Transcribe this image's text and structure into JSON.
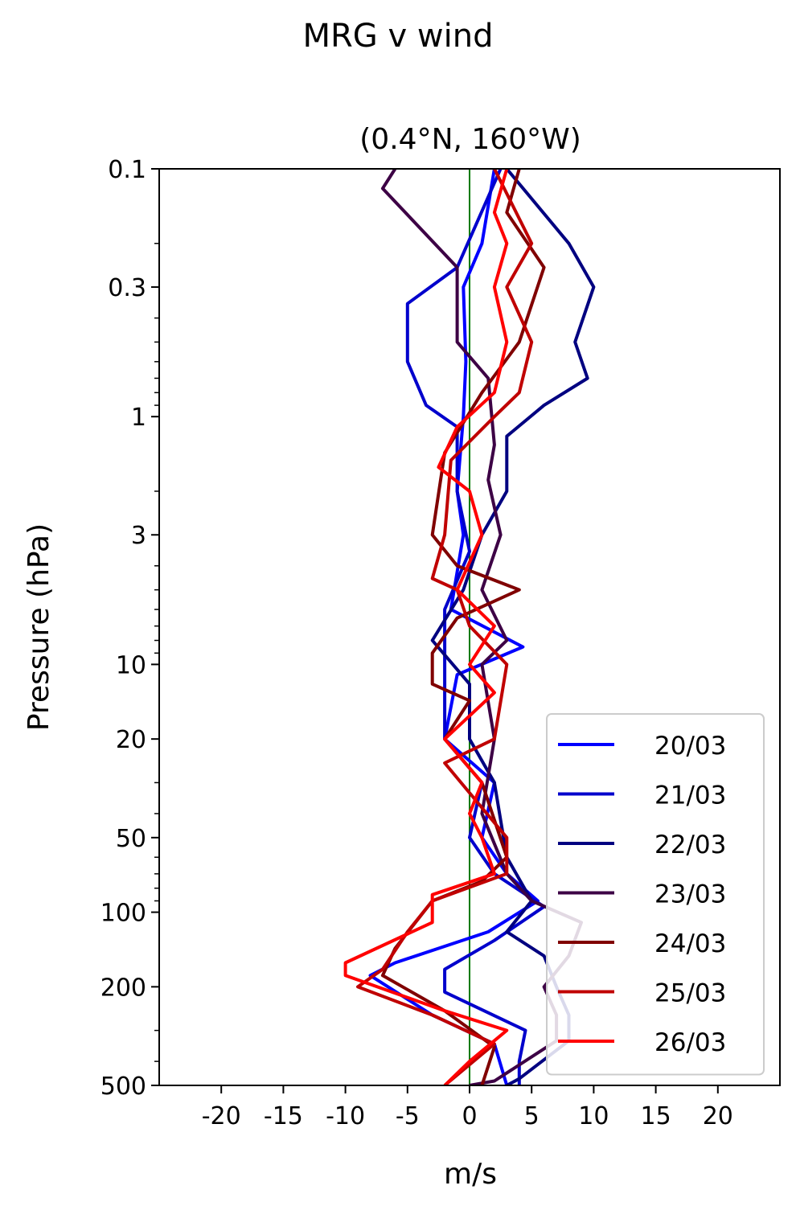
{
  "chart_data": {
    "type": "line",
    "title": "MRG v wind",
    "subtitle": "(0.4°N, 160°W)",
    "xlabel": "m/s",
    "ylabel": "Pressure (hPa)",
    "xlim": [
      -25,
      25
    ],
    "ylim": [
      500,
      0.1
    ],
    "yscale": "log",
    "x_ticks": [
      -20,
      -15,
      -10,
      -5,
      0,
      5,
      10,
      15,
      20
    ],
    "x_tick_labels": [
      "-20",
      "-15",
      "-10",
      "-5",
      "0",
      "5",
      "10",
      "15",
      "20"
    ],
    "y_ticks": [
      0.1,
      0.3,
      1,
      3,
      10,
      20,
      50,
      100,
      200,
      500
    ],
    "y_tick_labels": [
      "0.1",
      "0.3",
      "1",
      "3",
      "10",
      "20",
      "50",
      "100",
      "200",
      "500"
    ],
    "zero_line": {
      "x": 0,
      "color": "#007a00"
    },
    "legend_position": "lower-right",
    "series": [
      {
        "name": "20/03",
        "color": "#0000ff",
        "points": [
          [
            2,
            0.1
          ],
          [
            1,
            0.2
          ],
          [
            -0.5,
            0.3
          ],
          [
            -0.3,
            0.6
          ],
          [
            -0.5,
            1.0
          ],
          [
            -1,
            2.0
          ],
          [
            -0.5,
            3.0
          ],
          [
            -1.5,
            6.0
          ],
          [
            4.3,
            8.5
          ],
          [
            -1,
            11
          ],
          [
            -2,
            20
          ],
          [
            2,
            30
          ],
          [
            1,
            50
          ],
          [
            3,
            70
          ],
          [
            5.5,
            90
          ],
          [
            1.5,
            120
          ],
          [
            -6,
            160
          ],
          [
            -8,
            180
          ],
          [
            -3,
            260
          ],
          [
            2,
            340
          ],
          [
            3,
            500
          ]
        ]
      },
      {
        "name": "21/03",
        "color": "#0000cc",
        "points": [
          [
            2.5,
            0.1
          ],
          [
            -1,
            0.25
          ],
          [
            -5,
            0.35
          ],
          [
            -5,
            0.6
          ],
          [
            -3.5,
            0.9
          ],
          [
            -1,
            1.1
          ],
          [
            -1,
            2.0
          ],
          [
            0,
            3.5
          ],
          [
            -2,
            6.0
          ],
          [
            -2,
            10
          ],
          [
            -2,
            20
          ],
          [
            1,
            30
          ],
          [
            0,
            50
          ],
          [
            2,
            70
          ],
          [
            6,
            95
          ],
          [
            2,
            130
          ],
          [
            -2,
            170
          ],
          [
            -2,
            210
          ],
          [
            4.5,
            300
          ],
          [
            4,
            400
          ],
          [
            4,
            500
          ]
        ]
      },
      {
        "name": "22/03",
        "color": "#000080",
        "points": [
          [
            3,
            0.1
          ],
          [
            8,
            0.2
          ],
          [
            10,
            0.3
          ],
          [
            8.5,
            0.5
          ],
          [
            9.5,
            0.7
          ],
          [
            6,
            0.9
          ],
          [
            3,
            1.2
          ],
          [
            3,
            2.0
          ],
          [
            1,
            3.0
          ],
          [
            -0.5,
            5.0
          ],
          [
            -3,
            8.0
          ],
          [
            0,
            12
          ],
          [
            0,
            20
          ],
          [
            2,
            30
          ],
          [
            3,
            60
          ],
          [
            5,
            90
          ],
          [
            3,
            120
          ],
          [
            6,
            150
          ],
          [
            7,
            200
          ],
          [
            8,
            260
          ],
          [
            8,
            330
          ],
          [
            4,
            470
          ],
          [
            3,
            500
          ]
        ]
      },
      {
        "name": "23/03",
        "color": "#3d0045",
        "points": [
          [
            -6,
            0.1
          ],
          [
            -7,
            0.12
          ],
          [
            -1,
            0.25
          ],
          [
            -1,
            0.5
          ],
          [
            1.5,
            0.7
          ],
          [
            2,
            1.3
          ],
          [
            1.5,
            1.8
          ],
          [
            2.5,
            3.0
          ],
          [
            1,
            5.0
          ],
          [
            3,
            8.0
          ],
          [
            1,
            10
          ],
          [
            2,
            20
          ],
          [
            1,
            40
          ],
          [
            3,
            70
          ],
          [
            5,
            90
          ],
          [
            9,
            110
          ],
          [
            8,
            150
          ],
          [
            6,
            200
          ],
          [
            7,
            260
          ],
          [
            7,
            330
          ],
          [
            2,
            480
          ],
          [
            0,
            500
          ]
        ]
      },
      {
        "name": "24/03",
        "color": "#800000",
        "points": [
          [
            4,
            0.1
          ],
          [
            3,
            0.15
          ],
          [
            6,
            0.25
          ],
          [
            4,
            0.5
          ],
          [
            1,
            0.8
          ],
          [
            -2,
            1.4
          ],
          [
            -3,
            3.0
          ],
          [
            -1,
            4.0
          ],
          [
            4,
            5.0
          ],
          [
            -1,
            6.5
          ],
          [
            -3,
            9.0
          ],
          [
            -3,
            12
          ],
          [
            0,
            14
          ],
          [
            -2,
            20
          ],
          [
            1,
            30
          ],
          [
            3,
            60
          ],
          [
            1,
            75
          ],
          [
            -3,
            90
          ],
          [
            -6,
            140
          ],
          [
            -7,
            180
          ],
          [
            -2,
            250
          ],
          [
            2,
            350
          ],
          [
            1,
            500
          ]
        ]
      },
      {
        "name": "25/03",
        "color": "#c00000",
        "points": [
          [
            2,
            0.1
          ],
          [
            5,
            0.2
          ],
          [
            3,
            0.3
          ],
          [
            5,
            0.5
          ],
          [
            4,
            0.8
          ],
          [
            2,
            1.0
          ],
          [
            -1.5,
            1.5
          ],
          [
            -2,
            3.0
          ],
          [
            -3,
            4.5
          ],
          [
            -1,
            5.0
          ],
          [
            0,
            7.0
          ],
          [
            3,
            10
          ],
          [
            2,
            20
          ],
          [
            -2,
            25
          ],
          [
            3,
            50
          ],
          [
            3,
            70
          ],
          [
            -3,
            90
          ],
          [
            -5,
            120
          ],
          [
            -7,
            170
          ],
          [
            -9,
            200
          ],
          [
            -3,
            260
          ],
          [
            2,
            340
          ],
          [
            -2,
            500
          ]
        ]
      },
      {
        "name": "26/03",
        "color": "#ff0000",
        "points": [
          [
            3,
            0.1
          ],
          [
            2,
            0.15
          ],
          [
            3,
            0.2
          ],
          [
            2,
            0.3
          ],
          [
            3,
            0.5
          ],
          [
            2,
            0.8
          ],
          [
            -1,
            1.1
          ],
          [
            -2.5,
            1.6
          ],
          [
            0,
            2.0
          ],
          [
            1,
            3.0
          ],
          [
            -1,
            5.0
          ],
          [
            2,
            7.0
          ],
          [
            0,
            10
          ],
          [
            2,
            13
          ],
          [
            -2,
            20
          ],
          [
            1,
            30
          ],
          [
            0,
            40
          ],
          [
            1,
            50
          ],
          [
            2,
            70
          ],
          [
            -3,
            85
          ],
          [
            -3,
            110
          ],
          [
            -10,
            160
          ],
          [
            -10,
            180
          ],
          [
            -2,
            250
          ],
          [
            3,
            300
          ],
          [
            0,
            400
          ],
          [
            -2,
            500
          ]
        ]
      }
    ]
  }
}
